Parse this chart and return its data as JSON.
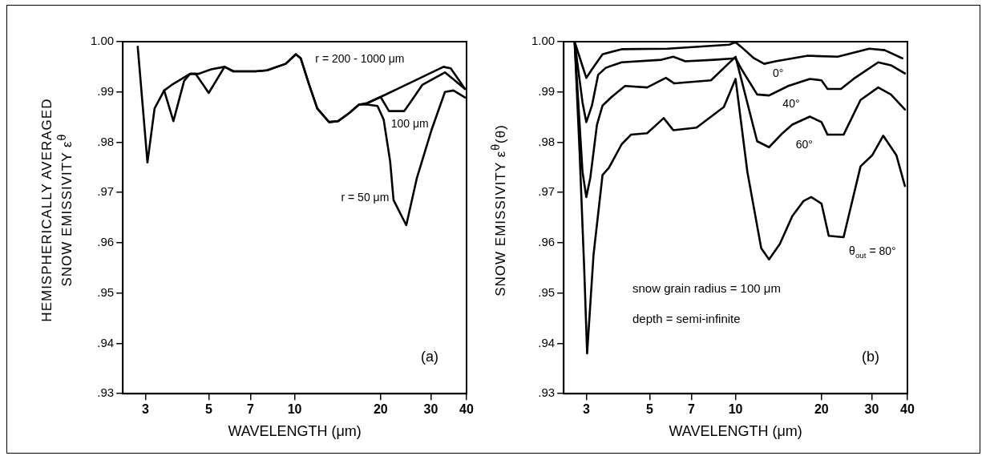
{
  "chart_data": [
    {
      "type": "line",
      "xlabel": "WAVELENGTH (μm)",
      "ylabel": "HEMISPHERICALLY AVERAGED\nSNOW EMISSIVITY ε$^{θ}$",
      "log": "x",
      "xlim": [
        2.5,
        40
      ],
      "xticks": [
        3,
        5,
        7,
        10,
        20,
        30,
        40
      ],
      "ylim": [
        0.93,
        1.0
      ],
      "yticks": [
        {
          "value": 0.93,
          "label": ".93"
        },
        {
          "value": 0.94,
          "label": ".94"
        },
        {
          "value": 0.95,
          "label": ".95"
        },
        {
          "value": 0.96,
          "label": ".96"
        },
        {
          "value": 0.97,
          "label": ".97"
        },
        {
          "value": 0.98,
          "label": ".98"
        },
        {
          "value": 0.99,
          "label": ".99"
        },
        {
          "value": 1.0,
          "label": "1.00"
        }
      ],
      "grid": false,
      "legend": false,
      "marker": "none",
      "line_style": "solid",
      "series": [
        {
          "name": "r = 200 - 1000 μm",
          "color": "#000000",
          "x": [
            2.82,
            3.05,
            3.23,
            3.49,
            3.71,
            4.3,
            4.6,
            5.1,
            5.68,
            6.1,
            7.3,
            8.0,
            9.3,
            10.1,
            10.5,
            11.2,
            12.0,
            13.2,
            14.2,
            15.6,
            16.8,
            18.0,
            20,
            33.2,
            35.2,
            38,
            39.5
          ],
          "values": [
            0.999,
            0.976,
            0.9867,
            0.9903,
            0.9914,
            0.9936,
            0.9936,
            0.9945,
            0.995,
            0.9941,
            0.9941,
            0.9943,
            0.9956,
            0.9975,
            0.9967,
            0.9917,
            0.9867,
            0.984,
            0.9842,
            0.9859,
            0.9875,
            0.9878,
            0.989,
            0.995,
            0.9947,
            0.992,
            0.9906
          ]
        },
        {
          "name": "100 μm",
          "color": "#000000",
          "x": [
            18.0,
            20,
            21.4,
            24.2,
            26.2,
            28.0,
            33.6,
            36,
            39.5
          ],
          "values": [
            0.9878,
            0.989,
            0.9862,
            0.9862,
            0.989,
            0.9914,
            0.9939,
            0.9925,
            0.9906
          ]
        },
        {
          "name": "r = 50 μm",
          "color": "#000000",
          "x": [
            3.49,
            3.76,
            4.1,
            4.3,
            4.5,
            5.0,
            5.68,
            6.1,
            7.3,
            8.0,
            9.3,
            10.1,
            10.5,
            11.2,
            12.0,
            13.2,
            14.2,
            15.6,
            16.8,
            18.0,
            19.5,
            20.5,
            21.6,
            22.2,
            24.6,
            26.8,
            30.1,
            33.6,
            36,
            39.5
          ],
          "values": [
            0.9903,
            0.9842,
            0.9922,
            0.9936,
            0.9936,
            0.9898,
            0.995,
            0.9941,
            0.9941,
            0.9943,
            0.9956,
            0.9975,
            0.9967,
            0.9917,
            0.9867,
            0.984,
            0.9842,
            0.9859,
            0.9875,
            0.9875,
            0.9872,
            0.9845,
            0.9762,
            0.9685,
            0.9635,
            0.9729,
            0.9823,
            0.99,
            0.9903,
            0.9889
          ]
        }
      ],
      "annotations": [
        "(a)"
      ]
    },
    {
      "type": "line",
      "xlabel": "WAVELENGTH (μm)",
      "ylabel": "SNOW EMISSIVITY ε$^{θ}$(θ)",
      "log": "x",
      "xlim": [
        2.5,
        40
      ],
      "xticks": [
        3,
        5,
        7,
        10,
        20,
        30,
        40
      ],
      "ylim": [
        0.93,
        1.0
      ],
      "yticks": [
        {
          "value": 0.93,
          "label": ".93"
        },
        {
          "value": 0.94,
          "label": ".94"
        },
        {
          "value": 0.95,
          "label": ".95"
        },
        {
          "value": 0.96,
          "label": ".96"
        },
        {
          "value": 0.97,
          "label": ".97"
        },
        {
          "value": 0.98,
          "label": ".98"
        },
        {
          "value": 0.99,
          "label": ".99"
        },
        {
          "value": 1.0,
          "label": "1.00"
        }
      ],
      "grid": false,
      "legend": false,
      "marker": "none",
      "line_style": "solid",
      "series": [
        {
          "name": "0°",
          "color": "#000000",
          "x": [
            2.73,
            3.0,
            3.14,
            3.42,
            3.99,
            5.79,
            9.5,
            10,
            10.5,
            11.6,
            12.6,
            13.8,
            17.9,
            22.8,
            29.4,
            33.3,
            38.4
          ],
          "values": [
            1.0,
            0.9928,
            0.9945,
            0.9975,
            0.9985,
            0.9986,
            0.9994,
            0.9999,
            0.9989,
            0.9967,
            0.9956,
            0.9961,
            0.9972,
            0.997,
            0.9986,
            0.9983,
            0.9967
          ]
        },
        {
          "name": "40°",
          "color": "#000000",
          "x": [
            2.73,
            2.91,
            3.0,
            3.14,
            3.3,
            3.51,
            3.99,
            5.5,
            6.05,
            6.67,
            8.4,
            10,
            10.5,
            11.9,
            13.1,
            15.3,
            18.2,
            20,
            21,
            23.4,
            25.9,
            31.6,
            35,
            39.2
          ],
          "values": [
            1.0,
            0.9879,
            0.984,
            0.9873,
            0.9934,
            0.9948,
            0.9959,
            0.9964,
            0.997,
            0.9961,
            0.9964,
            0.9967,
            0.9945,
            0.9895,
            0.9893,
            0.9912,
            0.9926,
            0.9923,
            0.9906,
            0.9906,
            0.9926,
            0.9959,
            0.9953,
            0.9937
          ]
        },
        {
          "name": "60°",
          "color": "#000000",
          "x": [
            2.73,
            2.91,
            3.0,
            3.1,
            3.27,
            3.42,
            3.68,
            4.1,
            4.9,
            5.7,
            6.1,
            8.2,
            10,
            10.5,
            11.9,
            13.1,
            14.6,
            15.8,
            18.2,
            20,
            21,
            23.9,
            27.4,
            31.6,
            35,
            39.2
          ],
          "values": [
            1.0,
            0.9741,
            0.9691,
            0.973,
            0.9835,
            0.9873,
            0.989,
            0.9912,
            0.9909,
            0.9928,
            0.9917,
            0.9923,
            0.997,
            0.9923,
            0.9802,
            0.979,
            0.9818,
            0.9835,
            0.9851,
            0.984,
            0.9815,
            0.9815,
            0.9884,
            0.9909,
            0.9895,
            0.9865
          ]
        },
        {
          "name": "θ$_{out}$ = 80°",
          "color": "#000000",
          "x": [
            2.73,
            2.84,
            2.95,
            3.02,
            3.18,
            3.42,
            3.6,
            3.99,
            4.3,
            4.9,
            5.6,
            6.05,
            7.3,
            9.1,
            10,
            11.0,
            12.3,
            13.1,
            14.3,
            15.8,
            17.3,
            18.4,
            20,
            21.2,
            23.9,
            27.4,
            30.1,
            32.9,
            36.6,
            39.2
          ],
          "values": [
            1.0,
            0.9785,
            0.9548,
            0.938,
            0.9576,
            0.9735,
            0.9749,
            0.9796,
            0.9815,
            0.9818,
            0.9848,
            0.9824,
            0.9829,
            0.987,
            0.9926,
            0.9741,
            0.9589,
            0.9567,
            0.9598,
            0.9653,
            0.9683,
            0.9691,
            0.9678,
            0.9614,
            0.9611,
            0.9752,
            0.9774,
            0.9813,
            0.9774,
            0.9713
          ]
        }
      ],
      "annotations": [
        "snow grain radius = 100 μm",
        "depth = semi-infinite",
        "(b)"
      ]
    }
  ]
}
